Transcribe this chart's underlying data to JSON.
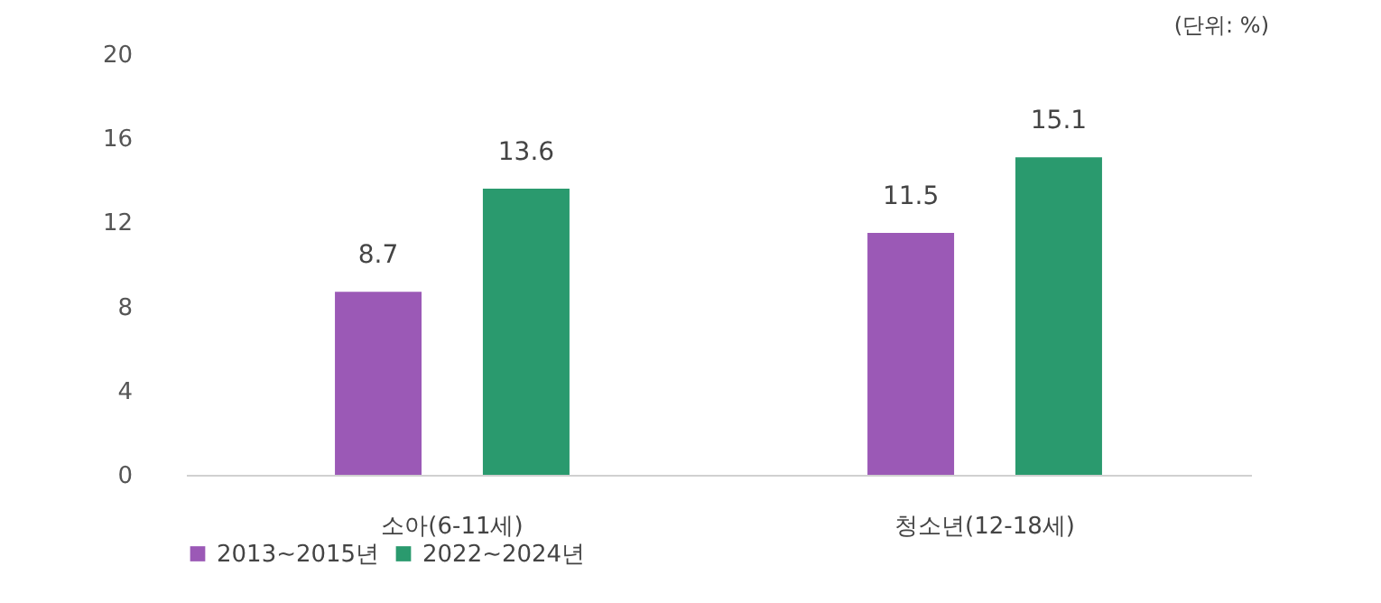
{
  "chart_data": {
    "type": "bar",
    "categories": [
      "소아(6-11세)",
      "청소년(12-18세)"
    ],
    "series": [
      {
        "name": "2013~2015년",
        "color": "#9b59b6",
        "values": [
          8.7,
          11.5
        ]
      },
      {
        "name": "2022~2024년",
        "color": "#2a9a6e",
        "values": [
          13.6,
          15.1
        ]
      }
    ],
    "ylim": [
      0,
      20
    ],
    "yticks": [
      0,
      4,
      8,
      12,
      16,
      20
    ],
    "grid": false,
    "legend": "bottom",
    "data_labels": true,
    "annotations": [
      "(단위: %)"
    ]
  }
}
